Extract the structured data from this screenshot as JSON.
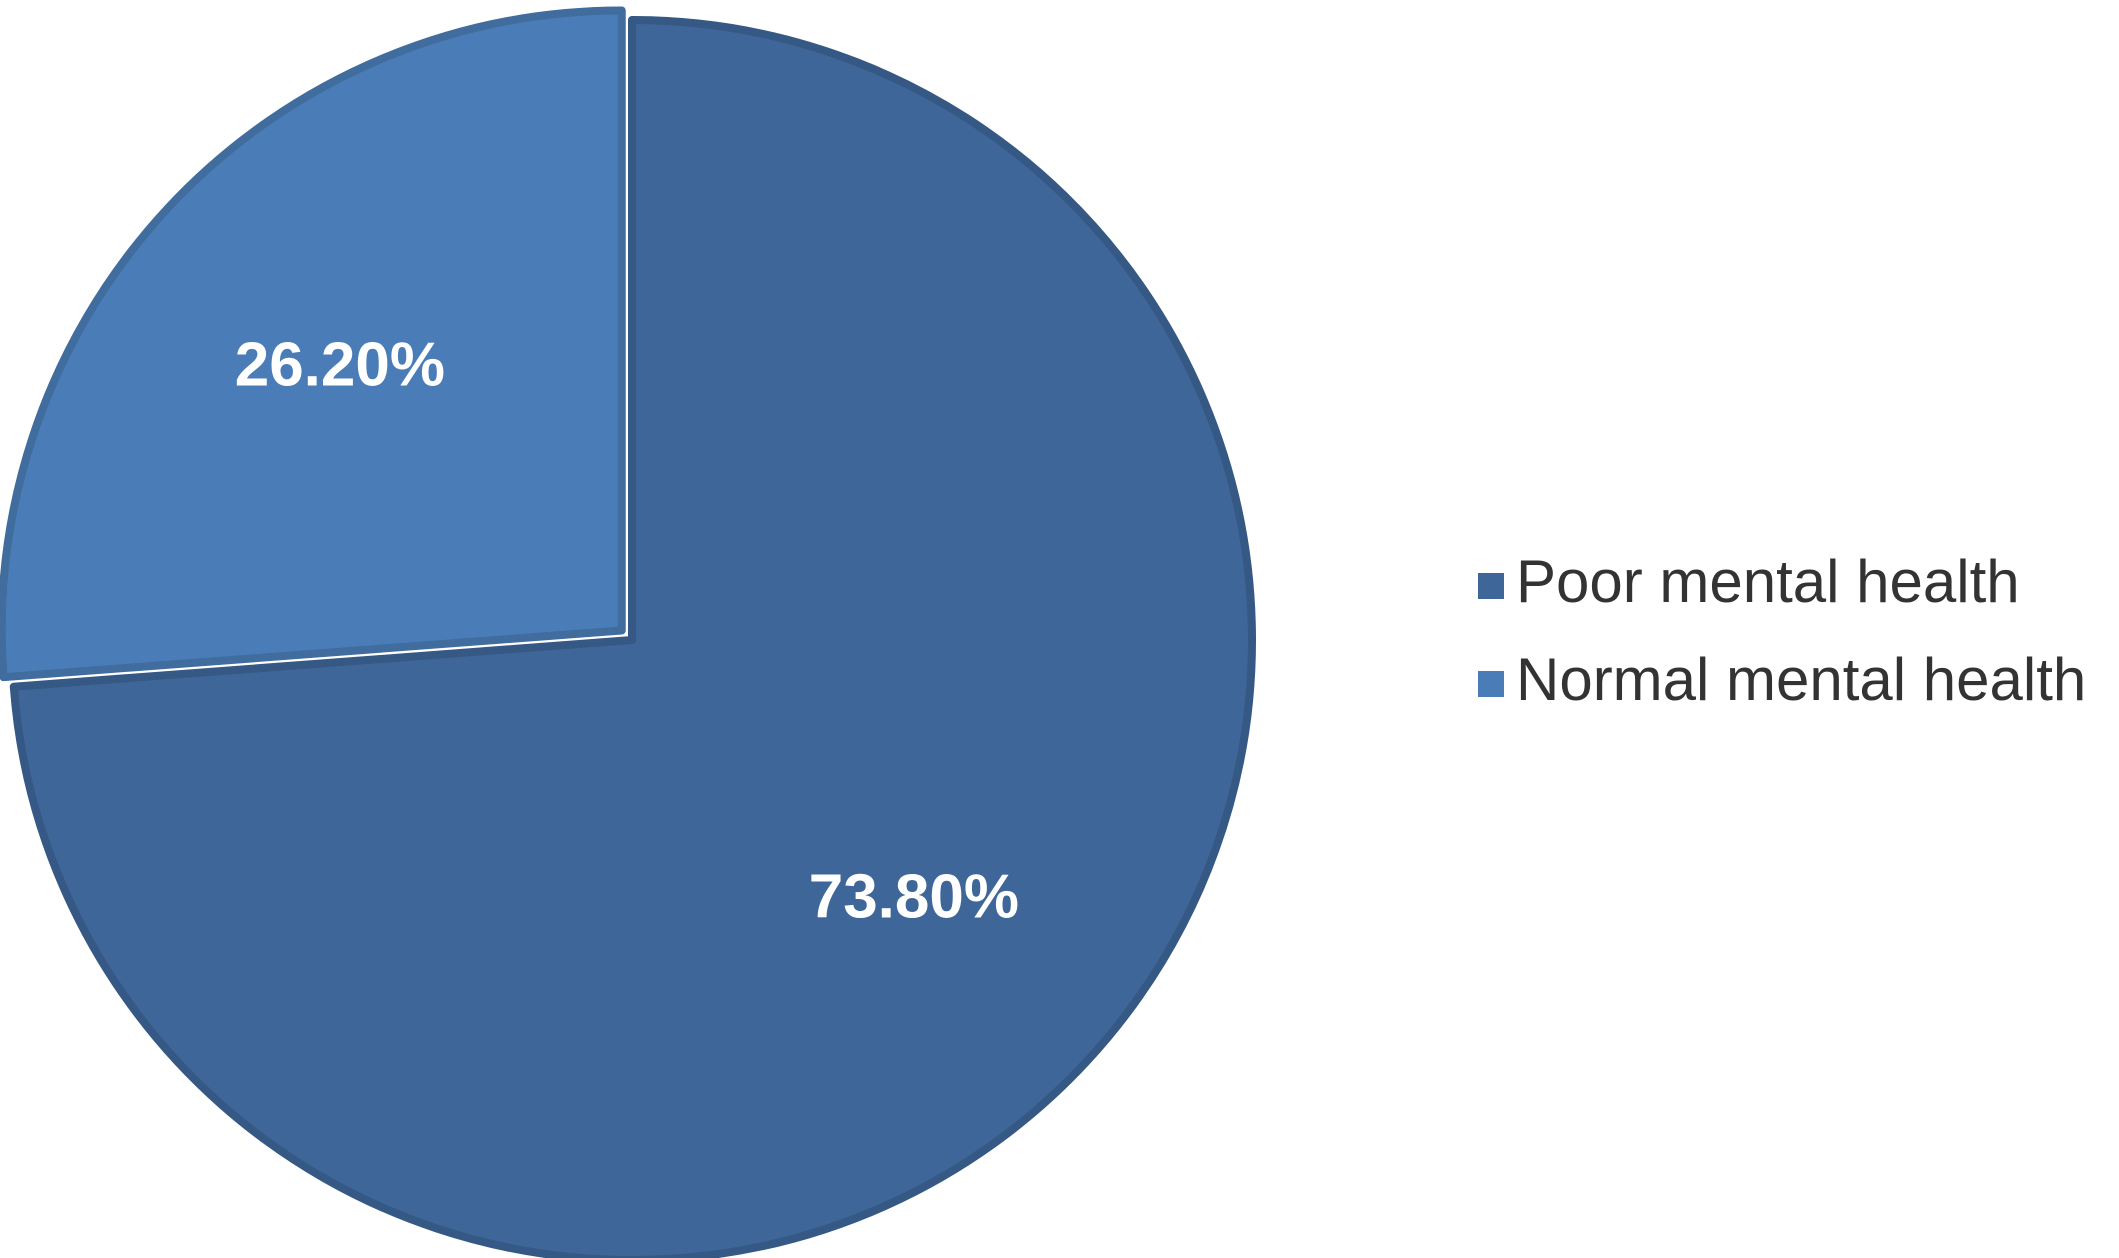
{
  "chart_data": {
    "type": "pie",
    "title": "",
    "slices": [
      {
        "name": "Poor mental health",
        "value": 73.8,
        "label": "73.80%",
        "color": "#3E6699"
      },
      {
        "name": "Normal mental health",
        "value": 26.2,
        "label": "26.20%",
        "color": "#4A7DB8"
      }
    ],
    "legend": {
      "placement": "right",
      "items": [
        "Poor mental health",
        "Normal mental health"
      ]
    },
    "start_angle_deg": 0,
    "direction": "clockwise",
    "exploded_slice": "Normal mental health"
  }
}
